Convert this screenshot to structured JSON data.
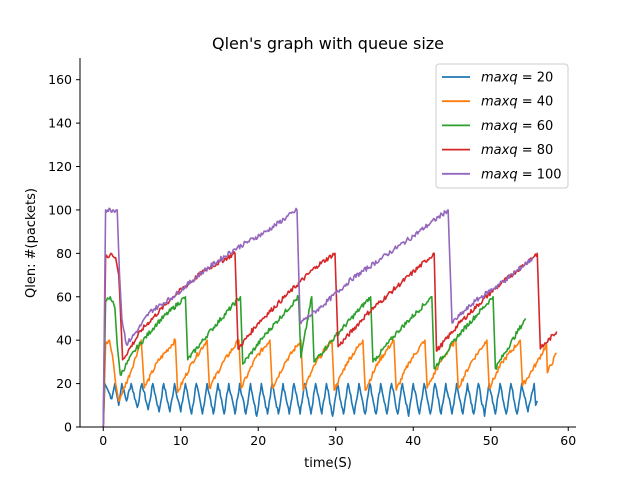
{
  "chart_data": {
    "type": "line",
    "title": "Qlen's graph with queue size",
    "xlabel": "time(S)",
    "ylabel": "Qlen: #(packets)",
    "xlim": [
      -3,
      61
    ],
    "ylim": [
      0,
      170
    ],
    "xticks": [
      0,
      10,
      20,
      30,
      40,
      50,
      60
    ],
    "yticks": [
      0,
      20,
      40,
      60,
      80,
      100,
      120,
      140,
      160
    ],
    "grid": false,
    "legend_position": "top-right",
    "series": [
      {
        "name": "maxq = 20",
        "legend_var": "maxq",
        "legend_value": "20",
        "color": "#1f77b4",
        "end_time": 56,
        "points": [
          [
            0,
            0
          ],
          [
            0.2,
            20
          ],
          [
            0.6,
            17
          ],
          [
            1.1,
            13
          ],
          [
            1.5,
            20
          ],
          [
            2.0,
            10
          ],
          [
            2.4,
            20
          ],
          [
            3.0,
            12
          ],
          [
            3.6,
            20
          ],
          [
            4.4,
            9
          ],
          [
            5.0,
            20
          ],
          [
            5.8,
            8
          ],
          [
            6.4,
            20
          ],
          [
            7.2,
            7
          ],
          [
            7.8,
            20
          ],
          [
            8.6,
            7
          ],
          [
            9.2,
            20
          ],
          [
            10.0,
            7
          ],
          [
            10.6,
            20
          ],
          [
            11.4,
            6
          ],
          [
            12.0,
            20
          ],
          [
            12.8,
            6
          ],
          [
            13.4,
            20
          ],
          [
            14.2,
            6
          ],
          [
            14.8,
            20
          ],
          [
            15.6,
            6
          ],
          [
            16.2,
            20
          ],
          [
            17.0,
            6
          ],
          [
            17.6,
            20
          ],
          [
            18.4,
            6
          ],
          [
            19.0,
            20
          ],
          [
            19.8,
            5
          ],
          [
            20.4,
            20
          ],
          [
            21.2,
            6
          ],
          [
            21.8,
            20
          ],
          [
            22.6,
            6
          ],
          [
            23.2,
            20
          ],
          [
            24.0,
            6
          ],
          [
            24.6,
            20
          ],
          [
            25.4,
            6
          ],
          [
            26.0,
            20
          ],
          [
            26.8,
            6
          ],
          [
            27.4,
            20
          ],
          [
            28.2,
            6
          ],
          [
            28.8,
            20
          ],
          [
            29.6,
            5
          ],
          [
            30.2,
            20
          ],
          [
            31.0,
            6
          ],
          [
            31.6,
            20
          ],
          [
            32.4,
            6
          ],
          [
            33.0,
            20
          ],
          [
            33.8,
            6
          ],
          [
            34.4,
            20
          ],
          [
            35.2,
            6
          ],
          [
            35.8,
            20
          ],
          [
            36.6,
            6
          ],
          [
            37.2,
            20
          ],
          [
            38.0,
            6
          ],
          [
            38.6,
            20
          ],
          [
            39.4,
            5
          ],
          [
            40.0,
            20
          ],
          [
            40.8,
            6
          ],
          [
            41.4,
            20
          ],
          [
            42.2,
            6
          ],
          [
            42.8,
            20
          ],
          [
            43.6,
            6
          ],
          [
            44.2,
            20
          ],
          [
            45.0,
            6
          ],
          [
            45.6,
            20
          ],
          [
            46.4,
            6
          ],
          [
            47.0,
            20
          ],
          [
            47.8,
            6
          ],
          [
            48.4,
            20
          ],
          [
            49.2,
            5
          ],
          [
            49.8,
            20
          ],
          [
            50.6,
            6
          ],
          [
            51.2,
            20
          ],
          [
            52.0,
            6
          ],
          [
            52.6,
            20
          ],
          [
            53.4,
            6
          ],
          [
            54.0,
            20
          ],
          [
            54.8,
            7
          ],
          [
            55.6,
            20
          ],
          [
            55.8,
            10
          ],
          [
            56,
            12
          ]
        ]
      },
      {
        "name": "maxq = 40",
        "legend_var": "maxq",
        "legend_value": "40",
        "color": "#ff7f0e",
        "end_time": 58.5,
        "points": [
          [
            0,
            0
          ],
          [
            0.3,
            38
          ],
          [
            0.8,
            40
          ],
          [
            1.3,
            30
          ],
          [
            1.6,
            20
          ],
          [
            2.0,
            12
          ],
          [
            3.5,
            25
          ],
          [
            4.9,
            40
          ],
          [
            5.3,
            18
          ],
          [
            7.0,
            30
          ],
          [
            9.3,
            40
          ],
          [
            9.6,
            16
          ],
          [
            11.5,
            30
          ],
          [
            13.4,
            40
          ],
          [
            13.7,
            18
          ],
          [
            15.5,
            30
          ],
          [
            17.5,
            40
          ],
          [
            17.8,
            18
          ],
          [
            19.7,
            32
          ],
          [
            21.5,
            40
          ],
          [
            21.8,
            18
          ],
          [
            23.5,
            30
          ],
          [
            25.5,
            40
          ],
          [
            25.8,
            17
          ],
          [
            27.5,
            30
          ],
          [
            29.5,
            40
          ],
          [
            29.8,
            17
          ],
          [
            31.5,
            30
          ],
          [
            33.5,
            40
          ],
          [
            33.8,
            17
          ],
          [
            35.5,
            30
          ],
          [
            37.5,
            40
          ],
          [
            37.8,
            17
          ],
          [
            39.5,
            30
          ],
          [
            41.5,
            40
          ],
          [
            41.8,
            18
          ],
          [
            43.5,
            30
          ],
          [
            45.5,
            40
          ],
          [
            45.8,
            18
          ],
          [
            47.5,
            30
          ],
          [
            49.5,
            40
          ],
          [
            49.8,
            18
          ],
          [
            51.5,
            30
          ],
          [
            53.8,
            40
          ],
          [
            54.1,
            19
          ],
          [
            56.0,
            30
          ],
          [
            57.2,
            38
          ],
          [
            57.3,
            25
          ],
          [
            58.5,
            34
          ]
        ]
      },
      {
        "name": "maxq = 60",
        "legend_var": "maxq",
        "legend_value": "60",
        "color": "#2ca02c",
        "end_time": 54.5,
        "points": [
          [
            0,
            0
          ],
          [
            0.3,
            58
          ],
          [
            0.9,
            60
          ],
          [
            1.5,
            55
          ],
          [
            1.8,
            38
          ],
          [
            2.2,
            24
          ],
          [
            4.0,
            35
          ],
          [
            7.0,
            48
          ],
          [
            10.6,
            60
          ],
          [
            10.9,
            31
          ],
          [
            14.0,
            45
          ],
          [
            17.7,
            60
          ],
          [
            18.0,
            29
          ],
          [
            21.0,
            43
          ],
          [
            25.2,
            60
          ],
          [
            25.5,
            32
          ],
          [
            26.9,
            60
          ],
          [
            27.2,
            30
          ],
          [
            30.0,
            42
          ],
          [
            34.5,
            60
          ],
          [
            34.8,
            30
          ],
          [
            38.0,
            44
          ],
          [
            42.4,
            60
          ],
          [
            42.7,
            27
          ],
          [
            46.0,
            43
          ],
          [
            50.3,
            60
          ],
          [
            50.6,
            27
          ],
          [
            54.5,
            50
          ]
        ]
      },
      {
        "name": "maxq = 80",
        "legend_var": "maxq",
        "legend_value": "80",
        "color": "#d62728",
        "end_time": 58.5,
        "points": [
          [
            0,
            0
          ],
          [
            0.3,
            78
          ],
          [
            1.0,
            80
          ],
          [
            1.6,
            78
          ],
          [
            2.0,
            70
          ],
          [
            2.5,
            31
          ],
          [
            5.0,
            45
          ],
          [
            9.0,
            60
          ],
          [
            13.0,
            72
          ],
          [
            17.0,
            80
          ],
          [
            17.4,
            36
          ],
          [
            20.0,
            48
          ],
          [
            24.0,
            62
          ],
          [
            27.5,
            74
          ],
          [
            29.9,
            80
          ],
          [
            30.3,
            37
          ],
          [
            34.0,
            52
          ],
          [
            38.0,
            65
          ],
          [
            42.7,
            80
          ],
          [
            43.0,
            35
          ],
          [
            46.0,
            48
          ],
          [
            50.0,
            62
          ],
          [
            54.0,
            74
          ],
          [
            56.0,
            80
          ],
          [
            56.4,
            36
          ],
          [
            58.5,
            44
          ]
        ]
      },
      {
        "name": "maxq = 100",
        "legend_var": "maxq",
        "legend_value": "100",
        "color": "#9467bd",
        "end_time": 55.5,
        "points": [
          [
            0,
            0
          ],
          [
            0.3,
            100
          ],
          [
            1.8,
            100
          ],
          [
            2.1,
            70
          ],
          [
            2.4,
            50
          ],
          [
            3.0,
            38
          ],
          [
            4.5,
            45
          ],
          [
            6.0,
            53
          ],
          [
            9.0,
            60
          ],
          [
            13.0,
            72
          ],
          [
            17.0,
            82
          ],
          [
            21.0,
            90
          ],
          [
            25.0,
            100
          ],
          [
            25.4,
            48
          ],
          [
            28.0,
            55
          ],
          [
            32.0,
            68
          ],
          [
            36.0,
            78
          ],
          [
            40.0,
            88
          ],
          [
            44.5,
            100
          ],
          [
            45.0,
            48
          ],
          [
            48.0,
            58
          ],
          [
            52.0,
            68
          ],
          [
            55.5,
            78
          ]
        ]
      }
    ]
  }
}
